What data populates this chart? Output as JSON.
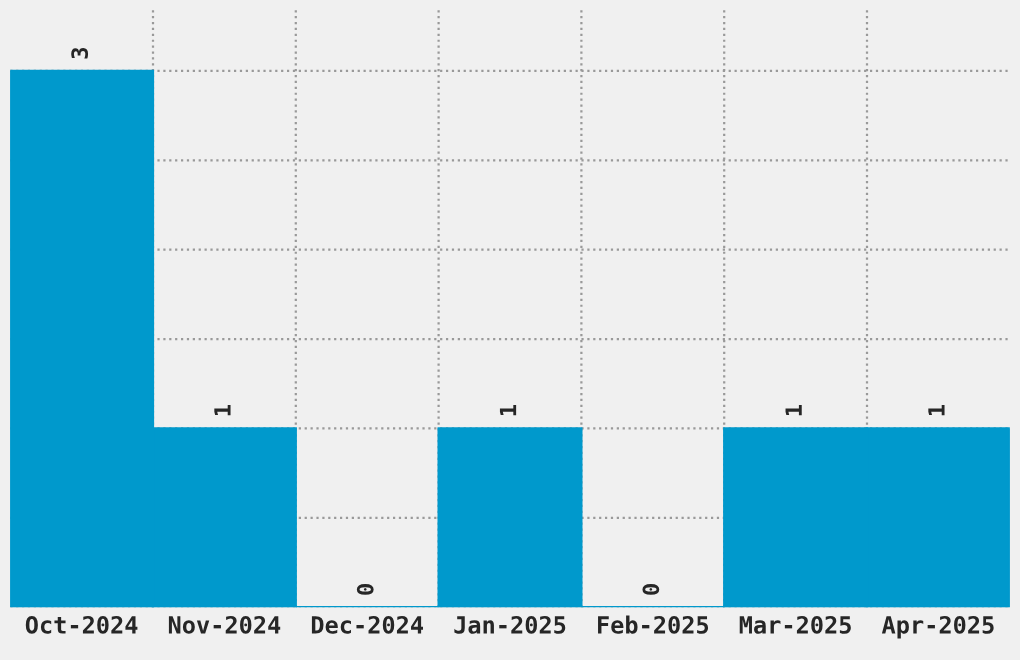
{
  "chart_data": {
    "type": "bar",
    "categories": [
      "Oct-2024",
      "Nov-2024",
      "Dec-2024",
      "Jan-2025",
      "Feb-2025",
      "Mar-2025",
      "Apr-2025"
    ],
    "values": [
      3,
      1,
      0,
      1,
      0,
      1,
      1
    ],
    "color": "#0099cc",
    "data_labels": true,
    "grid": true,
    "tick_labels": "x",
    "legend": false
  }
}
